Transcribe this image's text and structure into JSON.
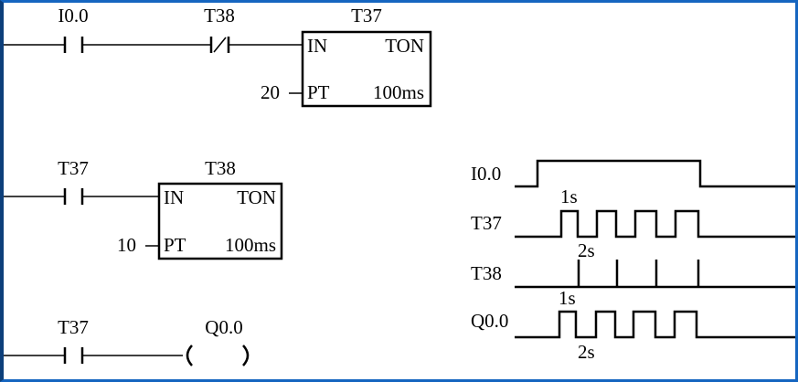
{
  "ladder": {
    "rung1": {
      "contact_no": "I0.0",
      "contact_nc": "T38",
      "timer": {
        "name": "T37",
        "in": "IN",
        "type": "TON",
        "pt_label": "PT",
        "preset": "20",
        "base": "100ms"
      }
    },
    "rung2": {
      "contact_no": "T37",
      "timer": {
        "name": "T38",
        "in": "IN",
        "type": "TON",
        "pt_label": "PT",
        "preset": "10",
        "base": "100ms"
      }
    },
    "rung3": {
      "contact_no": "T37",
      "coil": "Q0.0",
      "coil_left": "(",
      "coil_right": ")"
    }
  },
  "timing": {
    "signals": [
      "I0.0",
      "T37",
      "T38",
      "Q0.0"
    ],
    "t37_high": "1s",
    "t37_low": "2s",
    "q00_high": "1s",
    "q00_low": "2s"
  },
  "colors": {
    "frame": "#1565c0"
  }
}
